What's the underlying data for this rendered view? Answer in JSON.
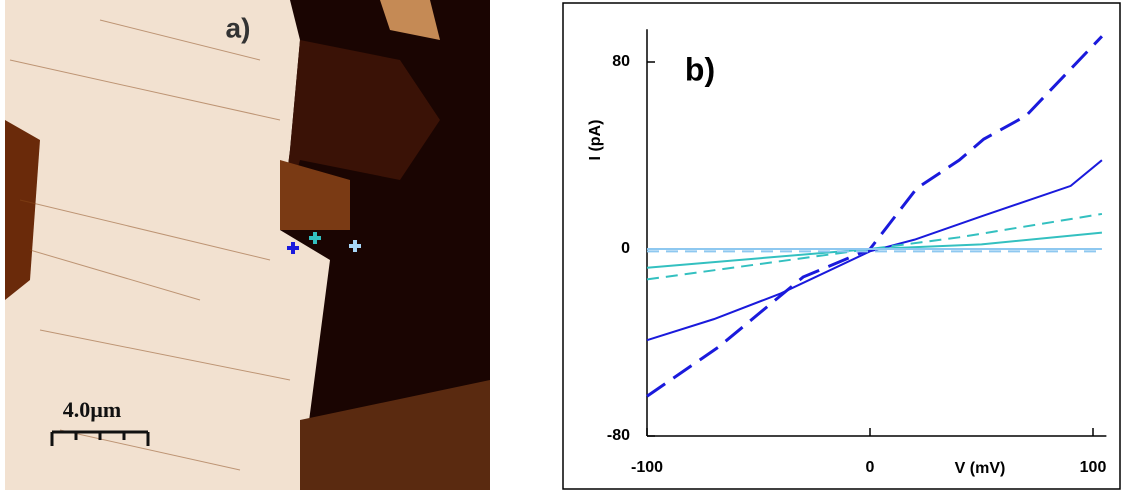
{
  "panel_a": {
    "label": "a)",
    "scale_bar": "4.0µm"
  },
  "chart_data": {
    "type": "line",
    "label": "b)",
    "xlabel": "V  (mV)",
    "ylabel": "I  (pA)",
    "xlim": [
      -100,
      106
    ],
    "ylim": [
      -80,
      94
    ],
    "xticks": [
      -100,
      0,
      100
    ],
    "yticks": [
      -80,
      0,
      80
    ],
    "series": [
      {
        "color": "#1a1adc",
        "dashed": true,
        "width": 3,
        "x": [
          -100,
          -68,
          -30,
          0,
          21,
          40,
          51,
          70,
          104
        ],
        "values": [
          -63,
          -42,
          -12,
          0,
          26,
          38,
          47,
          57,
          91
        ]
      },
      {
        "color": "#1a1adc",
        "dashed": false,
        "width": 2,
        "x": [
          -100,
          -70,
          -40,
          0,
          20,
          50,
          90,
          104
        ],
        "values": [
          -39,
          -30,
          -19,
          -1,
          4,
          14,
          27,
          38
        ]
      },
      {
        "color": "#33c0c0",
        "dashed": true,
        "width": 2,
        "x": [
          -100,
          0,
          40,
          104
        ],
        "values": [
          -13,
          0,
          5,
          15
        ]
      },
      {
        "color": "#33c0c0",
        "dashed": false,
        "width": 2,
        "x": [
          -100,
          0,
          50,
          104
        ],
        "values": [
          -8,
          0,
          2,
          7
        ]
      },
      {
        "color": "#8ec8f0",
        "dashed": false,
        "width": 2,
        "x": [
          -100,
          104
        ],
        "values": [
          0,
          0
        ]
      },
      {
        "color": "#8ec8f0",
        "dashed": true,
        "width": 2,
        "x": [
          -100,
          104
        ],
        "values": [
          -1,
          -1
        ]
      }
    ]
  }
}
